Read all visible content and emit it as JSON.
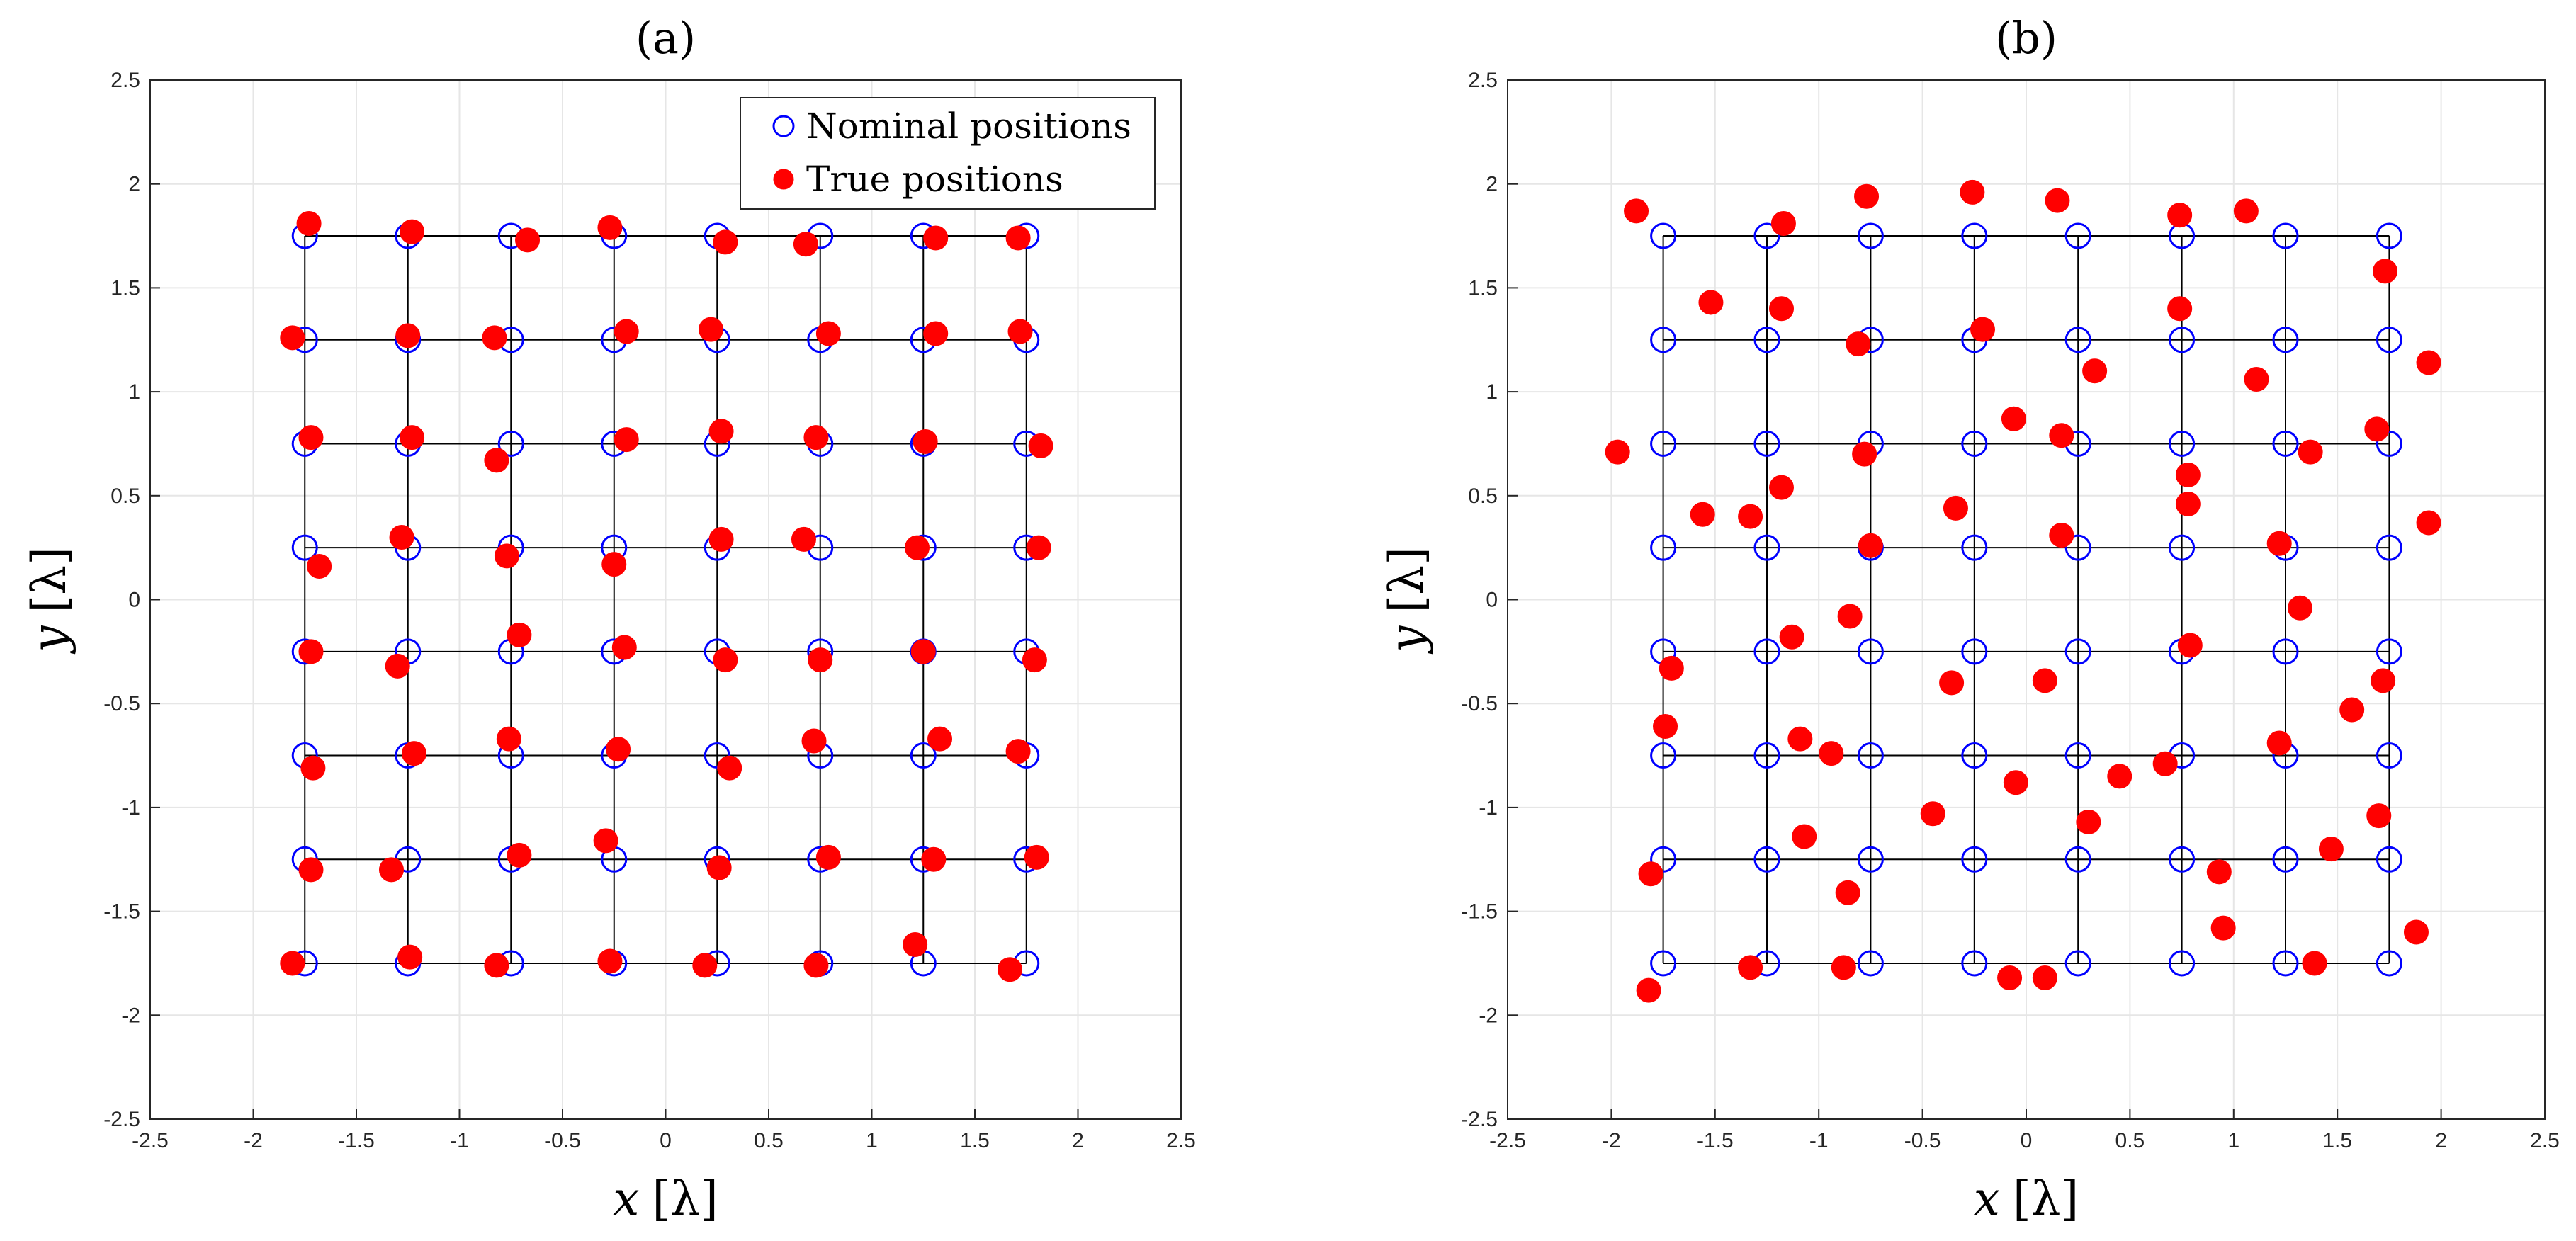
{
  "chart_data": [
    {
      "type": "scatter",
      "title": "(a)",
      "xlabel_var": "x",
      "xlabel_unit": "[λ]",
      "ylabel_var": "y",
      "ylabel_unit": "[λ]",
      "xlim": [
        -2.5,
        2.5
      ],
      "ylim": [
        -2.5,
        2.5
      ],
      "ticks": [
        -2.5,
        -2,
        -1.5,
        -1,
        -0.5,
        0,
        0.5,
        1,
        1.5,
        2,
        2.5
      ],
      "tick_labels": [
        "-2.5",
        "-2",
        "-1.5",
        "-1",
        "-0.5",
        "0",
        "0.5",
        "1",
        "1.5",
        "2",
        "2.5"
      ],
      "grid": true,
      "legend": {
        "placement": "top-right",
        "entries": [
          {
            "label": "Nominal positions",
            "marker": "open-circle",
            "color": "#0000ff"
          },
          {
            "label": "True positions",
            "marker": "filled-circle",
            "color": "#ff0000"
          }
        ]
      },
      "series": [
        {
          "name": "Nominal positions",
          "grid_coords": [
            -1.75,
            -1.25,
            -0.75,
            -0.25,
            0.25,
            0.75,
            1.25,
            1.75
          ]
        },
        {
          "name": "True positions",
          "points": [
            [
              -1.73,
              1.81
            ],
            [
              -1.23,
              1.77
            ],
            [
              -0.27,
              1.79
            ],
            [
              -0.67,
              1.73
            ],
            [
              0.29,
              1.72
            ],
            [
              0.68,
              1.71
            ],
            [
              1.31,
              1.74
            ],
            [
              1.71,
              1.74
            ],
            [
              -1.81,
              1.26
            ],
            [
              -1.25,
              1.27
            ],
            [
              -0.83,
              1.26
            ],
            [
              -0.19,
              1.29
            ],
            [
              0.22,
              1.3
            ],
            [
              0.79,
              1.28
            ],
            [
              1.31,
              1.28
            ],
            [
              1.72,
              1.29
            ],
            [
              -1.72,
              0.78
            ],
            [
              -1.23,
              0.78
            ],
            [
              -0.82,
              0.67
            ],
            [
              -0.19,
              0.77
            ],
            [
              0.27,
              0.81
            ],
            [
              0.73,
              0.78
            ],
            [
              1.26,
              0.76
            ],
            [
              1.82,
              0.74
            ],
            [
              -1.68,
              0.16
            ],
            [
              -1.28,
              0.3
            ],
            [
              -0.77,
              0.21
            ],
            [
              -0.25,
              0.17
            ],
            [
              0.27,
              0.29
            ],
            [
              0.67,
              0.29
            ],
            [
              1.22,
              0.25
            ],
            [
              1.81,
              0.25
            ],
            [
              -1.72,
              -0.25
            ],
            [
              -1.3,
              -0.32
            ],
            [
              -0.71,
              -0.17
            ],
            [
              -0.2,
              -0.23
            ],
            [
              0.29,
              -0.29
            ],
            [
              0.75,
              -0.29
            ],
            [
              1.25,
              -0.25
            ],
            [
              1.79,
              -0.29
            ],
            [
              -1.71,
              -0.81
            ],
            [
              -1.22,
              -0.74
            ],
            [
              -0.76,
              -0.67
            ],
            [
              -0.23,
              -0.72
            ],
            [
              0.31,
              -0.81
            ],
            [
              0.72,
              -0.68
            ],
            [
              1.33,
              -0.67
            ],
            [
              1.71,
              -0.73
            ],
            [
              -1.72,
              -1.3
            ],
            [
              -1.33,
              -1.3
            ],
            [
              -0.71,
              -1.23
            ],
            [
              -0.29,
              -1.16
            ],
            [
              0.26,
              -1.29
            ],
            [
              0.79,
              -1.24
            ],
            [
              1.3,
              -1.25
            ],
            [
              1.8,
              -1.24
            ],
            [
              -1.81,
              -1.75
            ],
            [
              -1.24,
              -1.72
            ],
            [
              -0.82,
              -1.76
            ],
            [
              -0.27,
              -1.74
            ],
            [
              0.19,
              -1.76
            ],
            [
              0.73,
              -1.76
            ],
            [
              1.21,
              -1.66
            ],
            [
              1.67,
              -1.78
            ]
          ]
        }
      ]
    },
    {
      "type": "scatter",
      "title": "(b)",
      "xlabel_var": "x",
      "xlabel_unit": "[λ]",
      "ylabel_var": "y",
      "ylabel_unit": "[λ]",
      "xlim": [
        -2.5,
        2.5
      ],
      "ylim": [
        -2.5,
        2.5
      ],
      "ticks": [
        -2.5,
        -2,
        -1.5,
        -1,
        -0.5,
        0,
        0.5,
        1,
        1.5,
        2,
        2.5
      ],
      "tick_labels": [
        "-2.5",
        "-2",
        "-1.5",
        "-1",
        "-0.5",
        "0",
        "0.5",
        "1",
        "1.5",
        "2",
        "2.5"
      ],
      "grid": true,
      "series": [
        {
          "name": "Nominal positions",
          "grid_coords": [
            -1.75,
            -1.25,
            -0.75,
            -0.25,
            0.25,
            0.75,
            1.25,
            1.75
          ]
        },
        {
          "name": "True positions",
          "points": [
            [
              -1.88,
              1.87
            ],
            [
              -1.17,
              1.81
            ],
            [
              -0.77,
              1.94
            ],
            [
              -0.26,
              1.96
            ],
            [
              0.15,
              1.92
            ],
            [
              0.74,
              1.85
            ],
            [
              1.06,
              1.87
            ],
            [
              1.73,
              1.58
            ],
            [
              -1.52,
              1.43
            ],
            [
              -1.18,
              1.4
            ],
            [
              -0.81,
              1.23
            ],
            [
              -0.21,
              1.3
            ],
            [
              0.33,
              1.1
            ],
            [
              0.74,
              1.4
            ],
            [
              1.11,
              1.06
            ],
            [
              1.94,
              1.14
            ],
            [
              -1.97,
              0.71
            ],
            [
              -1.18,
              0.54
            ],
            [
              -0.78,
              0.7
            ],
            [
              -0.06,
              0.87
            ],
            [
              0.17,
              0.79
            ],
            [
              0.78,
              0.6
            ],
            [
              1.37,
              0.71
            ],
            [
              1.69,
              0.82
            ],
            [
              -1.56,
              0.41
            ],
            [
              -1.33,
              0.4
            ],
            [
              -0.75,
              0.26
            ],
            [
              -0.34,
              0.44
            ],
            [
              0.17,
              0.31
            ],
            [
              0.78,
              0.46
            ],
            [
              1.22,
              0.27
            ],
            [
              1.94,
              0.37
            ],
            [
              -1.71,
              -0.33
            ],
            [
              -1.13,
              -0.18
            ],
            [
              -0.85,
              -0.08
            ],
            [
              -0.36,
              -0.4
            ],
            [
              0.09,
              -0.39
            ],
            [
              0.79,
              -0.22
            ],
            [
              1.32,
              -0.04
            ],
            [
              1.72,
              -0.39
            ],
            [
              -1.74,
              -0.61
            ],
            [
              -1.09,
              -0.67
            ],
            [
              -0.94,
              -0.74
            ],
            [
              -0.05,
              -0.88
            ],
            [
              0.45,
              -0.85
            ],
            [
              0.67,
              -0.79
            ],
            [
              1.22,
              -0.69
            ],
            [
              1.57,
              -0.53
            ],
            [
              -1.81,
              -1.32
            ],
            [
              -1.07,
              -1.14
            ],
            [
              -0.86,
              -1.41
            ],
            [
              -0.45,
              -1.03
            ],
            [
              0.3,
              -1.07
            ],
            [
              0.93,
              -1.31
            ],
            [
              1.47,
              -1.2
            ],
            [
              1.7,
              -1.04
            ],
            [
              -1.82,
              -1.88
            ],
            [
              -1.33,
              -1.77
            ],
            [
              -0.88,
              -1.77
            ],
            [
              -0.08,
              -1.82
            ],
            [
              0.09,
              -1.82
            ],
            [
              0.95,
              -1.58
            ],
            [
              1.39,
              -1.75
            ],
            [
              1.88,
              -1.6
            ]
          ]
        }
      ]
    }
  ]
}
